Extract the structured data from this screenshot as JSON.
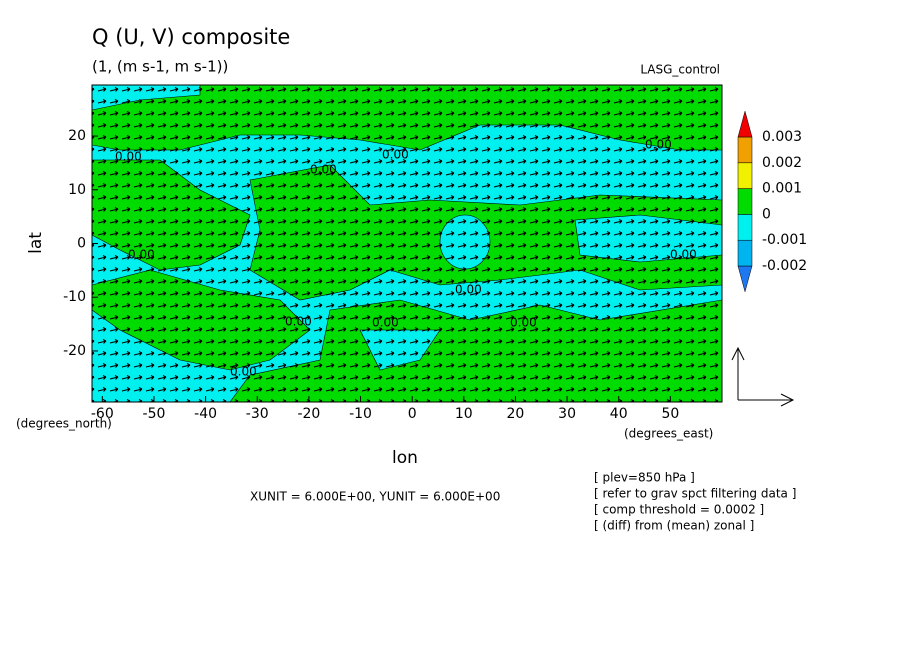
{
  "chart_data": {
    "type": "contour",
    "title": "Q (U, V) composite",
    "subtitle": "(1, (m s-1, m s-1))",
    "experiment": "LASG_control",
    "xlabel": "lon",
    "ylabel": "lat",
    "xunit_label": "(degrees_east)",
    "yunit_label": "(degrees_north)",
    "xlim": [
      -62,
      60
    ],
    "ylim": [
      -29.5,
      29.5
    ],
    "xticks": [
      -60,
      -50,
      -40,
      -30,
      -20,
      -10,
      0,
      10,
      20,
      30,
      40,
      50
    ],
    "yticks": [
      -20,
      -10,
      0,
      10,
      20
    ],
    "vector_scale": "XUNIT = 6.000E+00, YUNIT = 6.000E+00",
    "notes": [
      "[ plev=850 hPa ]",
      "[ refer to grav spct filtering data ]",
      "[ comp threshold = 0.0002 ]",
      "[ (diff) from (mean) zonal ]"
    ],
    "contour_labels": [
      "0.00",
      "0.00",
      "0.00",
      "0.00",
      "0.00",
      "0.00",
      "0.00",
      "0.00",
      "0.00",
      "0.00",
      "0.00"
    ],
    "colorbar": {
      "levels": [
        -0.002,
        -0.001,
        0,
        0.001,
        0.002,
        0.003
      ],
      "colors": [
        "#1e78f0",
        "#00b4f0",
        "#00f0f0",
        "#00dc00",
        "#f0f000",
        "#f0a000",
        "#f00000"
      ]
    }
  }
}
